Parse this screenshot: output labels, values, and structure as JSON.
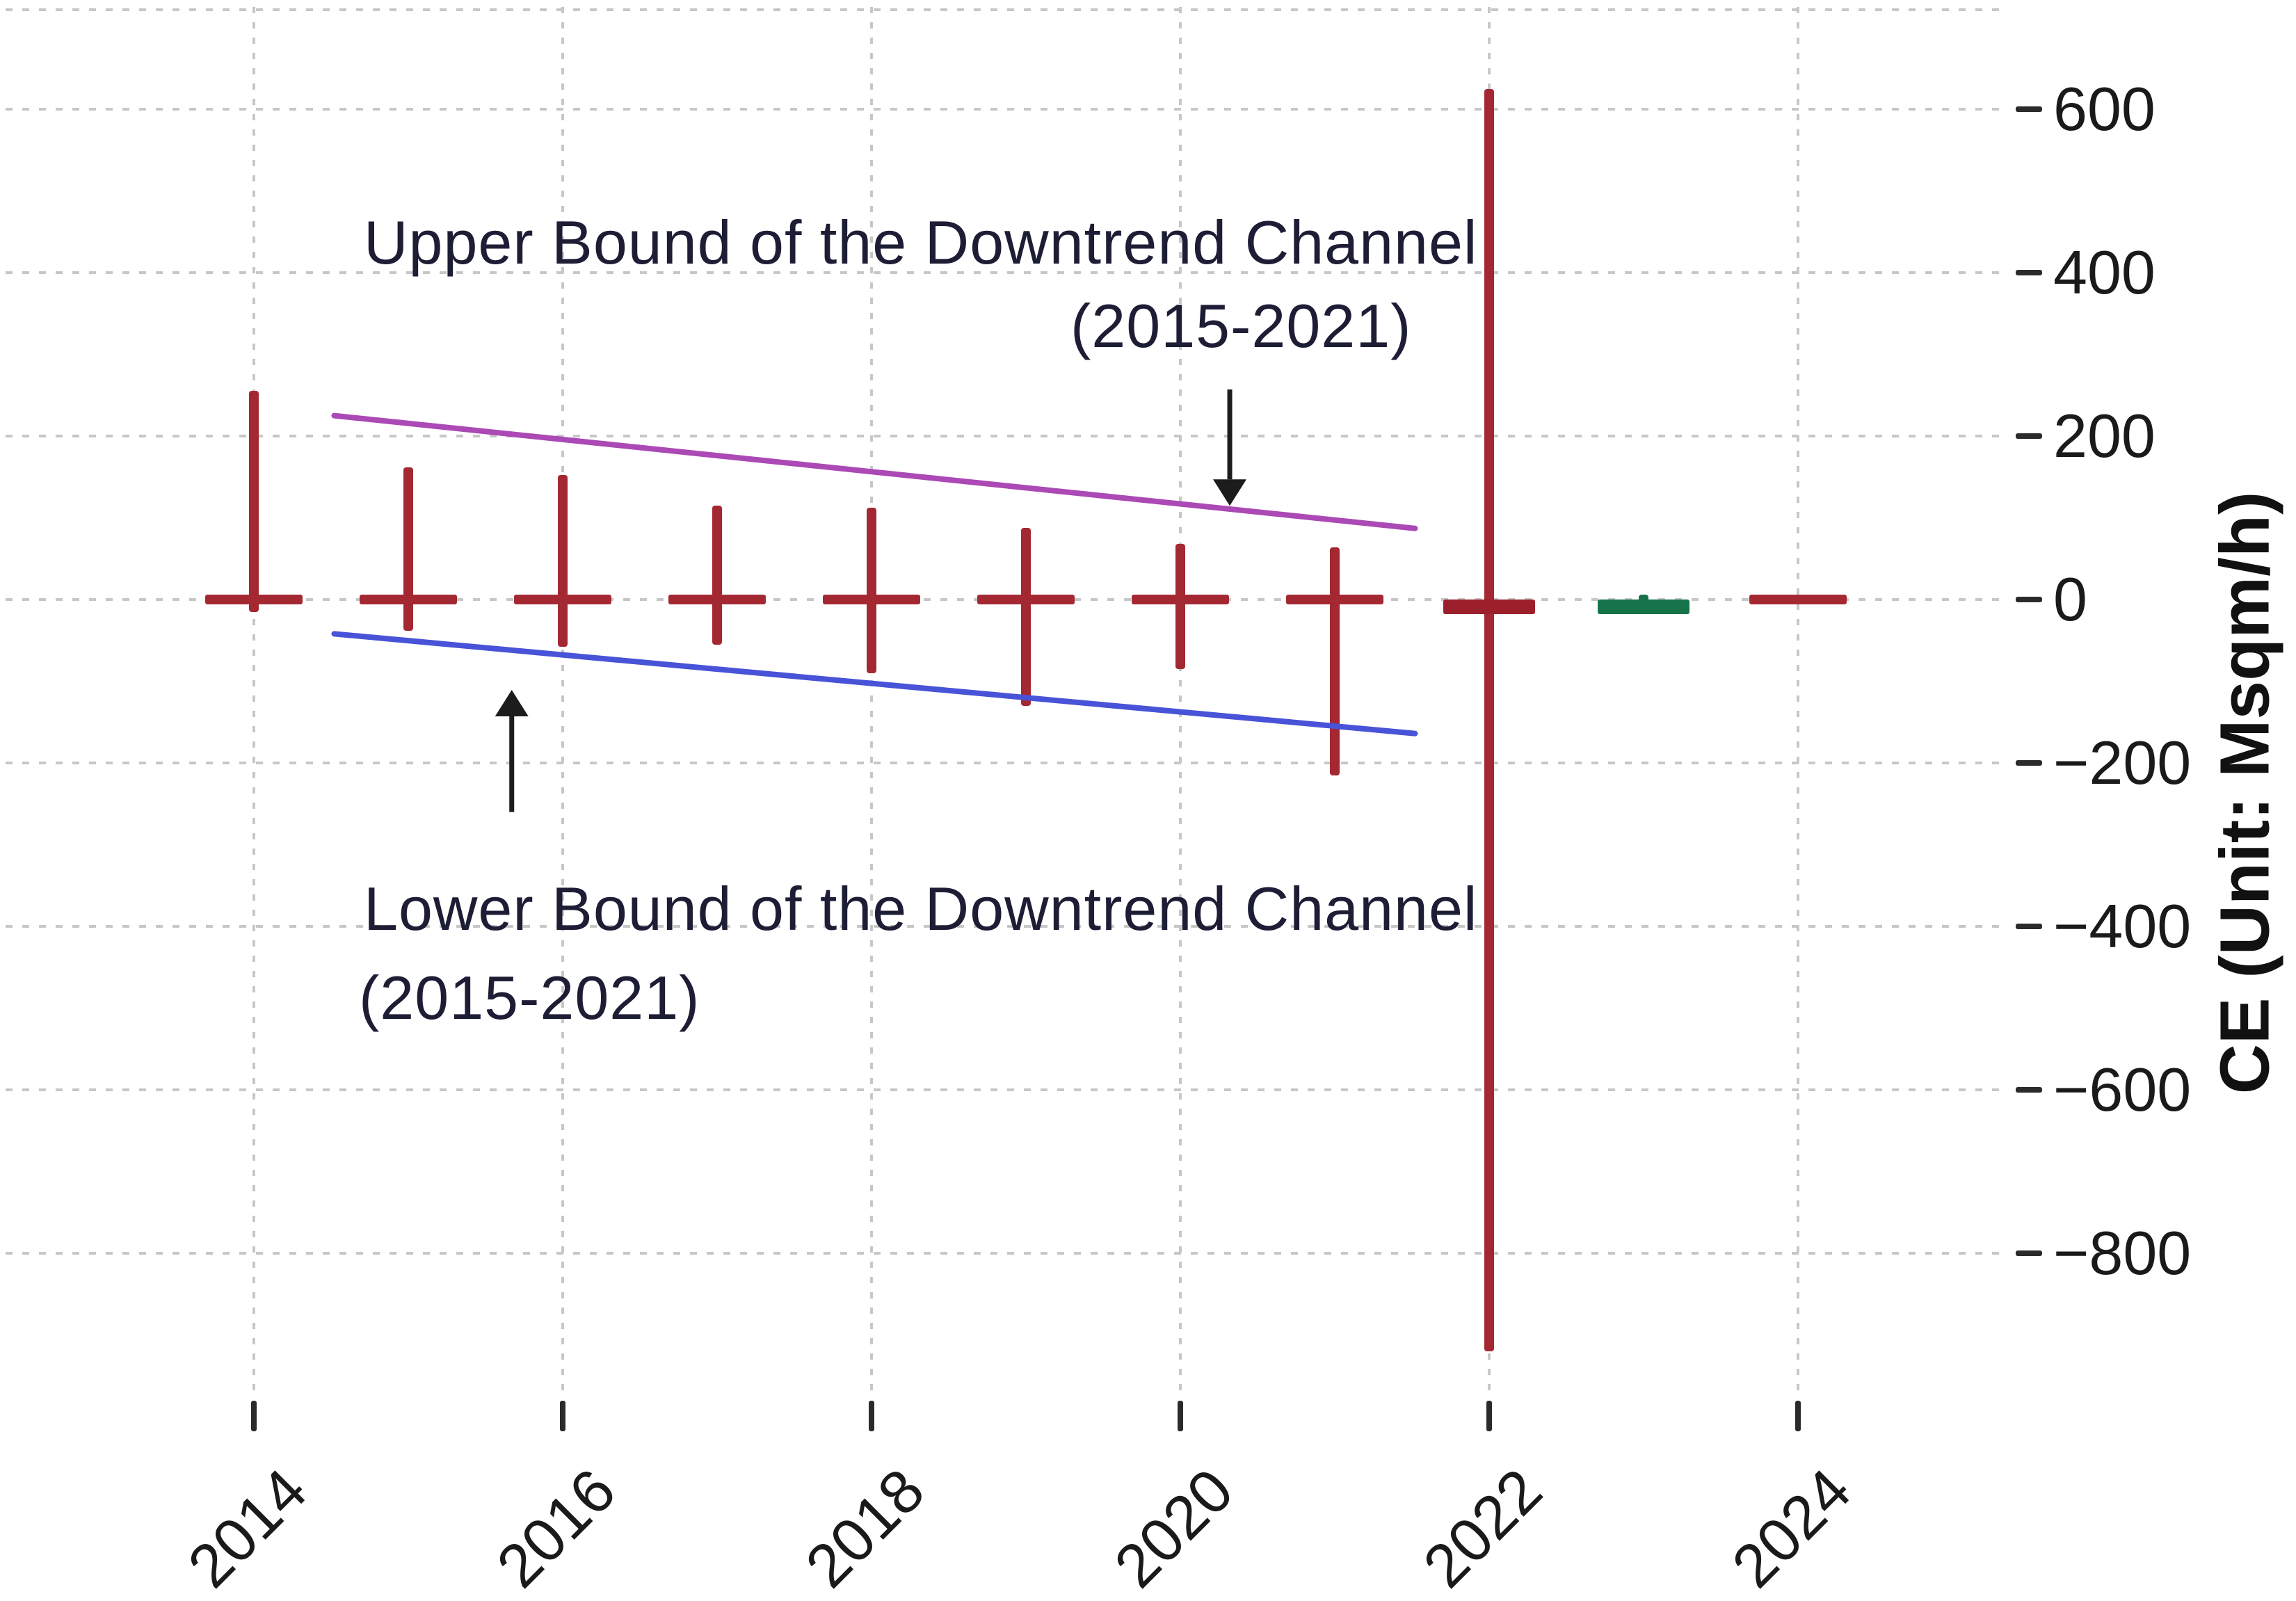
{
  "chart_data": {
    "type": "ohlc-candlestick",
    "title": "",
    "xlabel": "",
    "ylabel": "CE (Unit: Msqm/h)",
    "grid": true,
    "legend": "none",
    "ylim": [
      -975,
      735
    ],
    "x_tick_years": [
      2014,
      2016,
      2018,
      2020,
      2022,
      2024
    ],
    "x_tick_labels": [
      "2014",
      "2016",
      "2018",
      "2020",
      "2022",
      "2024"
    ],
    "y_ticks": [
      600,
      400,
      200,
      0,
      -200,
      -400,
      -600,
      -800
    ],
    "y_tick_labels": [
      "600",
      "400",
      "200",
      "0",
      "−200",
      "−400",
      "−600",
      "−800"
    ],
    "candles": [
      {
        "year": 2014,
        "high": 255,
        "low": -15,
        "open": 0,
        "close": 0,
        "color": "red",
        "marker": "dash"
      },
      {
        "year": 2015,
        "high": 162,
        "low": -38,
        "open": 0,
        "close": 0,
        "color": "red",
        "marker": "dash"
      },
      {
        "year": 2016,
        "high": 152,
        "low": -58,
        "open": 0,
        "close": 0,
        "color": "red",
        "marker": "dash"
      },
      {
        "year": 2017,
        "high": 115,
        "low": -55,
        "open": 0,
        "close": 0,
        "color": "red",
        "marker": "dash"
      },
      {
        "year": 2018,
        "high": 112,
        "low": -90,
        "open": 0,
        "close": 0,
        "color": "red",
        "marker": "dash"
      },
      {
        "year": 2019,
        "high": 88,
        "low": -130,
        "open": 0,
        "close": 0,
        "color": "red",
        "marker": "dash"
      },
      {
        "year": 2020,
        "high": 68,
        "low": -85,
        "open": 0,
        "close": 0,
        "color": "red",
        "marker": "dash"
      },
      {
        "year": 2021,
        "high": 64,
        "low": -215,
        "open": 0,
        "close": 0,
        "color": "red",
        "marker": "dash"
      },
      {
        "year": 2022,
        "high": 625,
        "low": -920,
        "open": 0,
        "close": -18,
        "color": "red",
        "marker": "body"
      },
      {
        "year": 2023,
        "high": 6,
        "low": -18,
        "open": -18,
        "close": 0,
        "color": "green",
        "marker": "body"
      },
      {
        "year": 2024,
        "high": 0,
        "low": 0,
        "open": 0,
        "close": 0,
        "color": "red",
        "marker": "dash"
      }
    ],
    "channel_lines": [
      {
        "name": "upper-bound",
        "color_key": "channel_upper",
        "start_year": 2014.52,
        "start_value": 225,
        "end_year": 2021.52,
        "end_value": 87
      },
      {
        "name": "lower-bound",
        "color_key": "channel_lower",
        "start_year": 2014.52,
        "start_value": -42,
        "end_year": 2021.52,
        "end_value": -164
      }
    ],
    "arrows": [
      {
        "name": "upper-annotation-arrow",
        "direction": "down",
        "year": 2020.32,
        "from_value": 257,
        "to_value": 147
      },
      {
        "name": "lower-annotation-arrow",
        "direction": "up",
        "year": 2015.67,
        "from_value": -260,
        "to_value": -143
      }
    ]
  },
  "annotations": {
    "upper_line1": "Upper Bound of the Downtrend Channel",
    "upper_line2": "(2015-2021)",
    "lower_line1": "Lower Bound of the Downtrend Channel",
    "lower_line2": "(2015-2021)"
  },
  "colors": {
    "candle_red": "#a42832",
    "candle_red_body": "#9c202c",
    "candle_green": "#16734a",
    "channel_upper": "#ab49b5",
    "channel_lower": "#4853d8",
    "grid": "#c7c7c7",
    "arrow": "#1c1c1c",
    "annotation_text": "#1d1d35",
    "tick_text": "#1a1a1a",
    "background": "#ffffff"
  }
}
